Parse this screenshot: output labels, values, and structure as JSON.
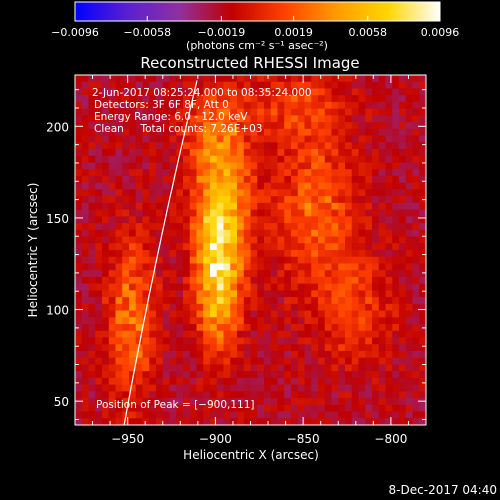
{
  "chart_data": {
    "type": "heatmap",
    "title": "Reconstructed RHESSI Image",
    "xlabel": "Heliocentric X (arcsec)",
    "ylabel": "Heliocentric Y (arcsec)",
    "xlim": [
      -980,
      -780
    ],
    "ylim": [
      37,
      228
    ],
    "x_ticks": [
      -950,
      -900,
      -850,
      -800
    ],
    "x_tick_labels": [
      "−950",
      "−900",
      "−850",
      "−800"
    ],
    "y_ticks": [
      50,
      100,
      150,
      200
    ],
    "y_tick_labels": [
      "50",
      "100",
      "150",
      "200"
    ],
    "colorbar": {
      "range": [
        -0.0096,
        0.0096
      ],
      "ticks": [
        -0.0096,
        -0.0058,
        -0.0019,
        0.0019,
        0.0058,
        0.0096
      ],
      "tick_labels": [
        "−0.0096",
        "−0.0058",
        "−0.0019",
        "0.0019",
        "0.0058",
        "0.0096"
      ],
      "unit_label": "(photons cm⁻² s⁻¹ asec⁻²)",
      "colors": [
        "#0000ff",
        "#5a20d0",
        "#9030a0",
        "#c00000",
        "#ff4000",
        "#ff9a00",
        "#ffd600",
        "#ffffff"
      ]
    },
    "annotations": [
      "2-Jun-2017 08:25:24.000 to 08:35:24.000",
      "Detectors: 3F 6F 8F, Att 0",
      "Energy Range: 6.0 - 12.0 keV",
      "Clean     Total counts: 7.26E+03"
    ],
    "peak_label": "Position of Peak = [−900,111]",
    "peak": [
      -900,
      111
    ],
    "sources": [
      {
        "x": -898,
        "y": 118,
        "sx": 9,
        "sy": 26,
        "amp": 0.0096
      },
      {
        "x": -896,
        "y": 158,
        "sx": 12,
        "sy": 22,
        "amp": 0.006
      },
      {
        "x": -900,
        "y": 195,
        "sx": 12,
        "sy": 18,
        "amp": 0.0045
      },
      {
        "x": -948,
        "y": 95,
        "sx": 9,
        "sy": 30,
        "amp": 0.0055
      },
      {
        "x": -843,
        "y": 155,
        "sx": 16,
        "sy": 30,
        "amp": 0.0045
      },
      {
        "x": -820,
        "y": 100,
        "sx": 14,
        "sy": 20,
        "amp": 0.0035
      },
      {
        "x": -855,
        "y": 210,
        "sx": 20,
        "sy": 12,
        "amp": 0.003
      }
    ]
  },
  "footer": {
    "timestamp": "8-Dec-2017 04:40"
  }
}
